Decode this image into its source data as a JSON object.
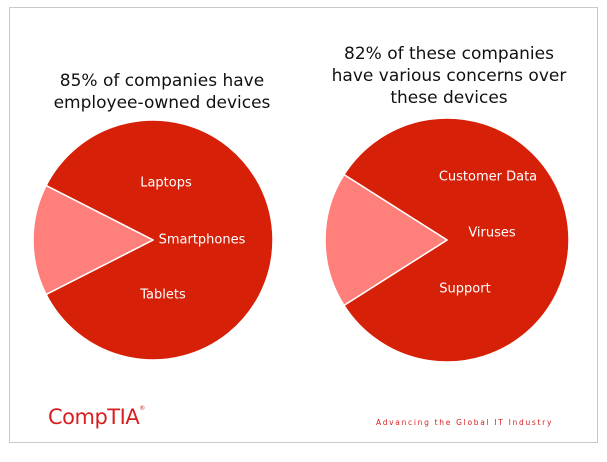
{
  "colors": {
    "slice_main": "#d62008",
    "slice_other": "#ff7f7b",
    "brand": "#d71f1f"
  },
  "chart_data": [
    {
      "type": "pie",
      "title_lines": [
        "85% of companies have",
        "employee-owned devices"
      ],
      "slices": [
        {
          "label": "",
          "value": 85,
          "color": "#d62008"
        },
        {
          "label": "",
          "value": 15,
          "color": "#ff7f7b"
        }
      ],
      "annotations": [
        "Laptops",
        "Smartphones",
        "Tablets"
      ]
    },
    {
      "type": "pie",
      "title_lines": [
        "82% of these companies",
        "have various concerns over",
        "these devices"
      ],
      "slices": [
        {
          "label": "",
          "value": 82,
          "color": "#d62008"
        },
        {
          "label": "",
          "value": 18,
          "color": "#ff7f7b"
        }
      ],
      "annotations": [
        "Customer Data",
        "Viruses",
        "Support"
      ]
    }
  ],
  "footer": {
    "logo_text": "CompTIA",
    "logo_mark": "®",
    "tagline": "Advancing the Global IT Industry"
  }
}
